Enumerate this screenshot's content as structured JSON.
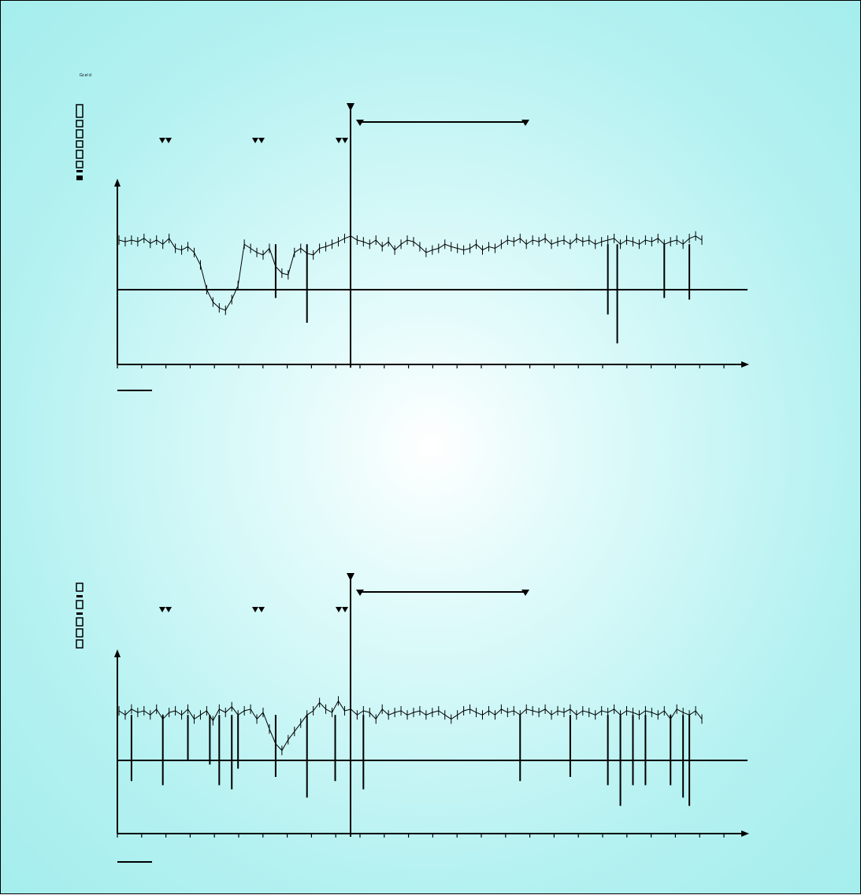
{
  "corner_label": "Gr.el d",
  "colors": {
    "background_center": "#ffffff",
    "background_edge": "#a5eded",
    "ink": "#000000"
  },
  "chart_data": [
    {
      "type": "line",
      "title": "",
      "ylabel": "",
      "xlabel": "",
      "grid": false,
      "x_range": [
        0,
        100
      ],
      "y_range": [
        -1,
        1
      ],
      "baseline_y": 0,
      "event_x": 37,
      "interval": [
        39,
        65
      ],
      "double_markers_x": [
        7.5,
        22,
        36
      ],
      "tick_count": 25,
      "series": [
        {
          "x": [
            0,
            1,
            2,
            3,
            4,
            5,
            6,
            7,
            8,
            9,
            10,
            11,
            12,
            13,
            14,
            15,
            16,
            17,
            18,
            19,
            20,
            21,
            22,
            23,
            24,
            25,
            26,
            27,
            28,
            29,
            30,
            31,
            32,
            33,
            34,
            35,
            36,
            37,
            38,
            39,
            40,
            41,
            42,
            43,
            44,
            45,
            46,
            47,
            48,
            49,
            50,
            51,
            52,
            53,
            54,
            55,
            56,
            57,
            58,
            59,
            60,
            61,
            62,
            63,
            64,
            65,
            66,
            67,
            68,
            69,
            70,
            71,
            72,
            73,
            74,
            75,
            76,
            77,
            78,
            79,
            80,
            81,
            82,
            83,
            84,
            85,
            86,
            87,
            88,
            89,
            90,
            91,
            92,
            93
          ],
          "y": [
            0.6,
            0.58,
            0.6,
            0.58,
            0.62,
            0.56,
            0.6,
            0.55,
            0.62,
            0.5,
            0.48,
            0.52,
            0.45,
            0.3,
            0.0,
            -0.15,
            -0.22,
            -0.25,
            -0.12,
            0.05,
            0.55,
            0.5,
            0.45,
            0.42,
            0.5,
            0.28,
            0.2,
            0.18,
            0.45,
            0.5,
            0.44,
            0.42,
            0.5,
            0.52,
            0.55,
            0.58,
            0.62,
            0.65,
            0.6,
            0.58,
            0.55,
            0.6,
            0.52,
            0.58,
            0.48,
            0.55,
            0.6,
            0.58,
            0.52,
            0.45,
            0.48,
            0.5,
            0.55,
            0.52,
            0.5,
            0.48,
            0.5,
            0.55,
            0.48,
            0.52,
            0.5,
            0.55,
            0.6,
            0.58,
            0.62,
            0.55,
            0.6,
            0.58,
            0.62,
            0.55,
            0.58,
            0.6,
            0.55,
            0.62,
            0.58,
            0.6,
            0.55,
            0.58,
            0.6,
            0.62,
            0.55,
            0.6,
            0.58,
            0.55,
            0.6,
            0.58,
            0.62,
            0.55,
            0.58,
            0.6,
            0.55,
            0.62,
            0.65,
            0.6
          ],
          "spikes": [
            {
              "x": 30,
              "y": -0.4
            },
            {
              "x": 78,
              "y": -0.3
            },
            {
              "x": 79.5,
              "y": -0.65
            },
            {
              "x": 87,
              "y": -0.1
            },
            {
              "x": 91,
              "y": -0.12
            },
            {
              "x": 25,
              "y": -0.1
            }
          ]
        }
      ]
    },
    {
      "type": "line",
      "title": "",
      "ylabel": "",
      "xlabel": "",
      "grid": false,
      "x_range": [
        0,
        100
      ],
      "y_range": [
        -1,
        1
      ],
      "baseline_y": 0,
      "event_x": 37,
      "interval": [
        39,
        65
      ],
      "double_markers_x": [
        7.5,
        22,
        36
      ],
      "tick_count": 25,
      "series": [
        {
          "x": [
            0,
            1,
            2,
            3,
            4,
            5,
            6,
            7,
            8,
            9,
            10,
            11,
            12,
            13,
            14,
            15,
            16,
            17,
            18,
            19,
            20,
            21,
            22,
            23,
            24,
            25,
            26,
            27,
            28,
            29,
            30,
            31,
            32,
            33,
            34,
            35,
            36,
            37,
            38,
            39,
            40,
            41,
            42,
            43,
            44,
            45,
            46,
            47,
            48,
            49,
            50,
            51,
            52,
            53,
            54,
            55,
            56,
            57,
            58,
            59,
            60,
            61,
            62,
            63,
            64,
            65,
            66,
            67,
            68,
            69,
            70,
            71,
            72,
            73,
            74,
            75,
            76,
            77,
            78,
            79,
            80,
            81,
            82,
            83,
            84,
            85,
            86,
            87,
            88,
            89,
            90,
            91,
            92,
            93
          ],
          "y": [
            0.6,
            0.55,
            0.62,
            0.58,
            0.6,
            0.55,
            0.62,
            0.5,
            0.58,
            0.6,
            0.55,
            0.62,
            0.5,
            0.55,
            0.6,
            0.48,
            0.62,
            0.58,
            0.65,
            0.55,
            0.6,
            0.62,
            0.5,
            0.58,
            0.38,
            0.2,
            0.12,
            0.25,
            0.35,
            0.45,
            0.55,
            0.6,
            0.7,
            0.62,
            0.58,
            0.72,
            0.6,
            0.62,
            0.55,
            0.6,
            0.58,
            0.5,
            0.62,
            0.55,
            0.58,
            0.6,
            0.55,
            0.58,
            0.6,
            0.55,
            0.58,
            0.6,
            0.55,
            0.5,
            0.55,
            0.6,
            0.62,
            0.58,
            0.55,
            0.6,
            0.55,
            0.62,
            0.58,
            0.6,
            0.55,
            0.62,
            0.6,
            0.58,
            0.62,
            0.55,
            0.6,
            0.58,
            0.62,
            0.55,
            0.6,
            0.58,
            0.55,
            0.6,
            0.58,
            0.62,
            0.55,
            0.6,
            0.58,
            0.55,
            0.6,
            0.58,
            0.55,
            0.6,
            0.5,
            0.62,
            0.58,
            0.55,
            0.6,
            0.5
          ],
          "spikes": [
            {
              "x": 2,
              "y": -0.25
            },
            {
              "x": 7,
              "y": -0.3
            },
            {
              "x": 11,
              "y": 0.0
            },
            {
              "x": 14.5,
              "y": -0.05
            },
            {
              "x": 16,
              "y": -0.3
            },
            {
              "x": 18,
              "y": -0.35
            },
            {
              "x": 19,
              "y": -0.1
            },
            {
              "x": 25,
              "y": -0.2
            },
            {
              "x": 30,
              "y": -0.45
            },
            {
              "x": 34.5,
              "y": -0.25
            },
            {
              "x": 39,
              "y": -0.35
            },
            {
              "x": 64,
              "y": -0.25
            },
            {
              "x": 72,
              "y": -0.2
            },
            {
              "x": 78,
              "y": -0.3
            },
            {
              "x": 80,
              "y": -0.55
            },
            {
              "x": 82,
              "y": -0.3
            },
            {
              "x": 84,
              "y": -0.3
            },
            {
              "x": 88,
              "y": -0.3
            },
            {
              "x": 90,
              "y": -0.45
            },
            {
              "x": 91,
              "y": -0.55
            }
          ]
        }
      ]
    }
  ]
}
